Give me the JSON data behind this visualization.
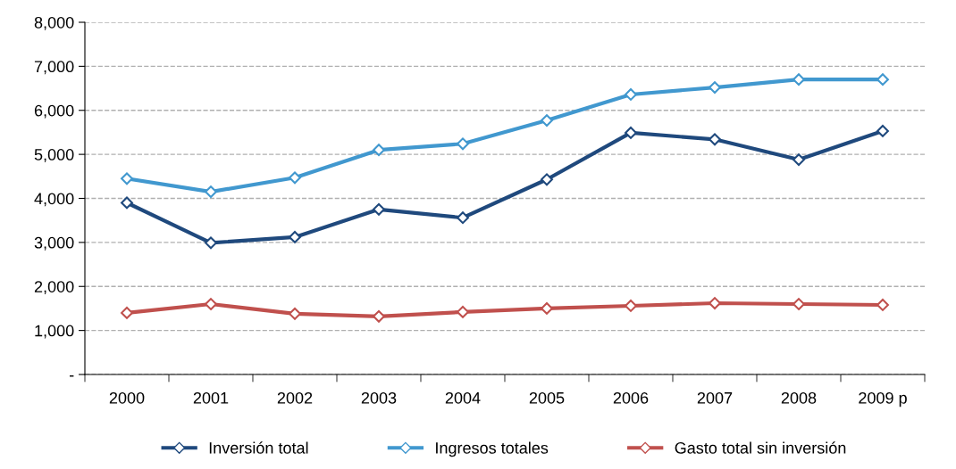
{
  "chart_data": {
    "type": "line",
    "categories": [
      "2000",
      "2001",
      "2002",
      "2003",
      "2004",
      "2005",
      "2006",
      "2007",
      "2008",
      "2009 p"
    ],
    "series": [
      {
        "name": "Inversión total",
        "color": "#1f497d",
        "values": [
          3900,
          2990,
          3120,
          3750,
          3560,
          4430,
          5490,
          5340,
          4880,
          5530
        ]
      },
      {
        "name": "Ingresos totales",
        "color": "#4198cf",
        "values": [
          4450,
          4150,
          4470,
          5100,
          5240,
          5770,
          6360,
          6520,
          6700,
          6700
        ]
      },
      {
        "name": "Gasto total sin inversión",
        "color": "#c0504d",
        "values": [
          1400,
          1600,
          1380,
          1320,
          1420,
          1500,
          1560,
          1620,
          1600,
          1580
        ]
      }
    ],
    "ylim": [
      0,
      8000
    ],
    "yticks": [
      {
        "value": 0,
        "label": "-"
      },
      {
        "value": 1000,
        "label": "1,000"
      },
      {
        "value": 2000,
        "label": "2,000"
      },
      {
        "value": 3000,
        "label": "3,000"
      },
      {
        "value": 4000,
        "label": "4,000"
      },
      {
        "value": 5000,
        "label": "5,000"
      },
      {
        "value": 6000,
        "label": "6,000"
      },
      {
        "value": 7000,
        "label": "7,000"
      },
      {
        "value": 8000,
        "label": "8,000"
      }
    ],
    "grid": "y",
    "legend": "bottom",
    "marker": "diamond",
    "line_style": "solid"
  }
}
